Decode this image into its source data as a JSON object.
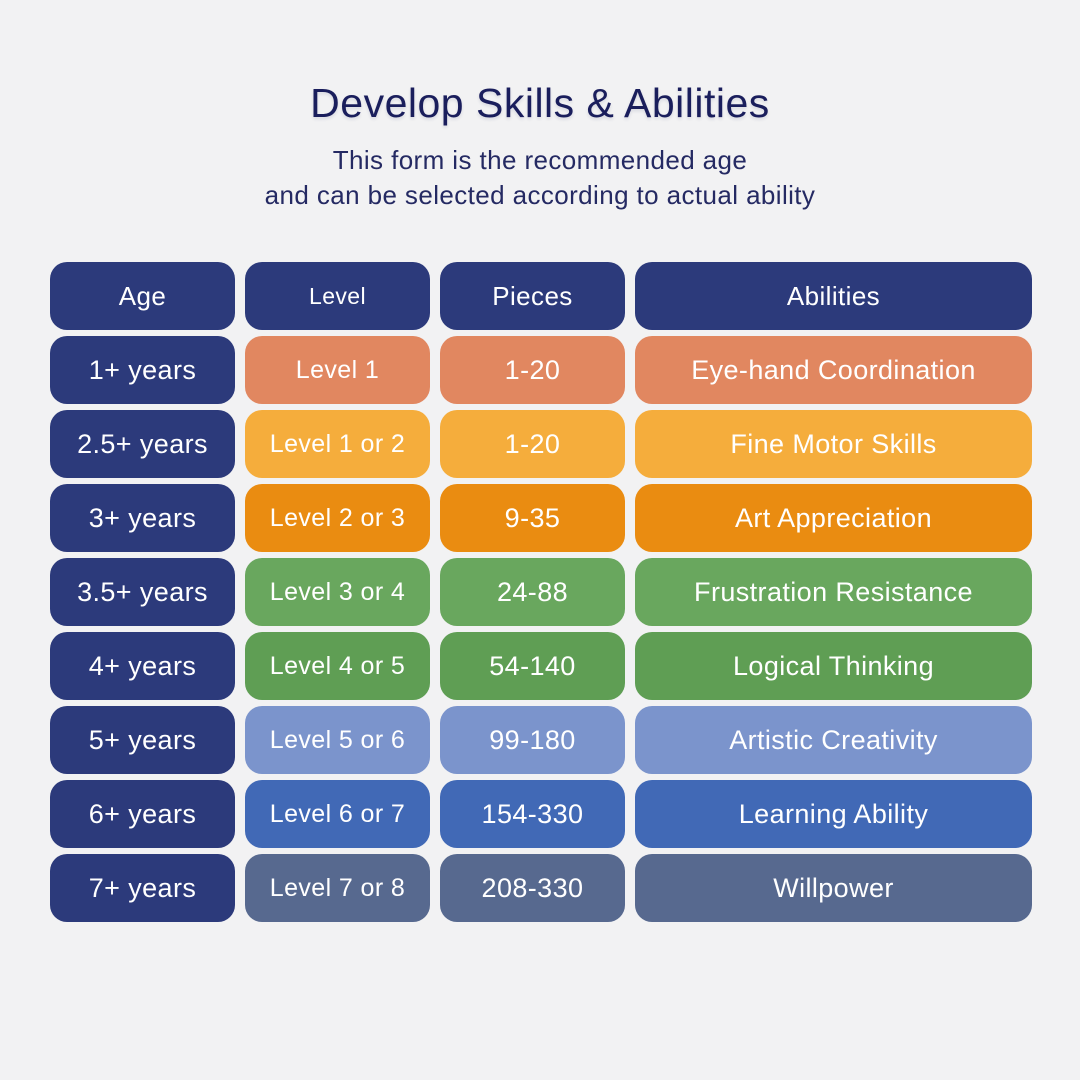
{
  "header": {
    "title": "Develop Skills & Abilities",
    "subtitle_line1": "This form is the recommended age",
    "subtitle_line2": "and can be  selected according to actual ability"
  },
  "colors": {
    "background": "#f2f2f3",
    "navy": "#2c3a7b",
    "title_navy": "#1a1e5c",
    "row_colors": [
      "#e18760",
      "#f5ad3c",
      "#ea8c11",
      "#69a75e",
      "#5f9e54",
      "#7b94cc",
      "#4169b6",
      "#57698f"
    ]
  },
  "table": {
    "headers": {
      "age": "Age",
      "level": "Level",
      "pieces": "Pieces",
      "abilities": "Abilities"
    },
    "rows": [
      {
        "age": "1+ years",
        "level": "Level 1",
        "pieces": "1-20",
        "ability": "Eye-hand Coordination",
        "color": "#e18760"
      },
      {
        "age": "2.5+ years",
        "level": "Level 1 or 2",
        "pieces": "1-20",
        "ability": "Fine Motor Skills",
        "color": "#f5ad3c"
      },
      {
        "age": "3+ years",
        "level": "Level 2 or 3",
        "pieces": "9-35",
        "ability": "Art Appreciation",
        "color": "#ea8c11"
      },
      {
        "age": "3.5+ years",
        "level": "Level 3 or 4",
        "pieces": "24-88",
        "ability": "Frustration Resistance",
        "color": "#69a75e"
      },
      {
        "age": "4+ years",
        "level": "Level 4 or 5",
        "pieces": "54-140",
        "ability": "Logical Thinking",
        "color": "#5f9e54"
      },
      {
        "age": "5+ years",
        "level": "Level 5 or 6",
        "pieces": "99-180",
        "ability": "Artistic Creativity",
        "color": "#7b94cc"
      },
      {
        "age": "6+ years",
        "level": "Level 6 or 7",
        "pieces": "154-330",
        "ability": "Learning Ability",
        "color": "#4169b6"
      },
      {
        "age": "7+ years",
        "level": "Level 7 or 8",
        "pieces": "208-330",
        "ability": "Willpower",
        "color": "#57698f"
      }
    ]
  },
  "chart_data": {
    "type": "table",
    "title": "Develop Skills & Abilities",
    "subtitle": "This form is the recommended age and can be selected according to actual ability",
    "columns": [
      "Age",
      "Level",
      "Pieces",
      "Abilities"
    ],
    "rows": [
      [
        "1+ years",
        "Level 1",
        "1-20",
        "Eye-hand Coordination"
      ],
      [
        "2.5+ years",
        "Level 1 or 2",
        "1-20",
        "Fine Motor Skills"
      ],
      [
        "3+ years",
        "Level 2 or 3",
        "9-35",
        "Art Appreciation"
      ],
      [
        "3.5+ years",
        "Level 3 or 4",
        "24-88",
        "Frustration Resistance"
      ],
      [
        "4+ years",
        "Level 4 or 5",
        "54-140",
        "Logical Thinking"
      ],
      [
        "5+ years",
        "Level 5 or 6",
        "99-180",
        "Artistic Creativity"
      ],
      [
        "6+ years",
        "Level 6 or 7",
        "154-330",
        "Learning Ability"
      ],
      [
        "7+ years",
        "Level 7 or 8",
        "208-330",
        "Willpower"
      ]
    ]
  }
}
